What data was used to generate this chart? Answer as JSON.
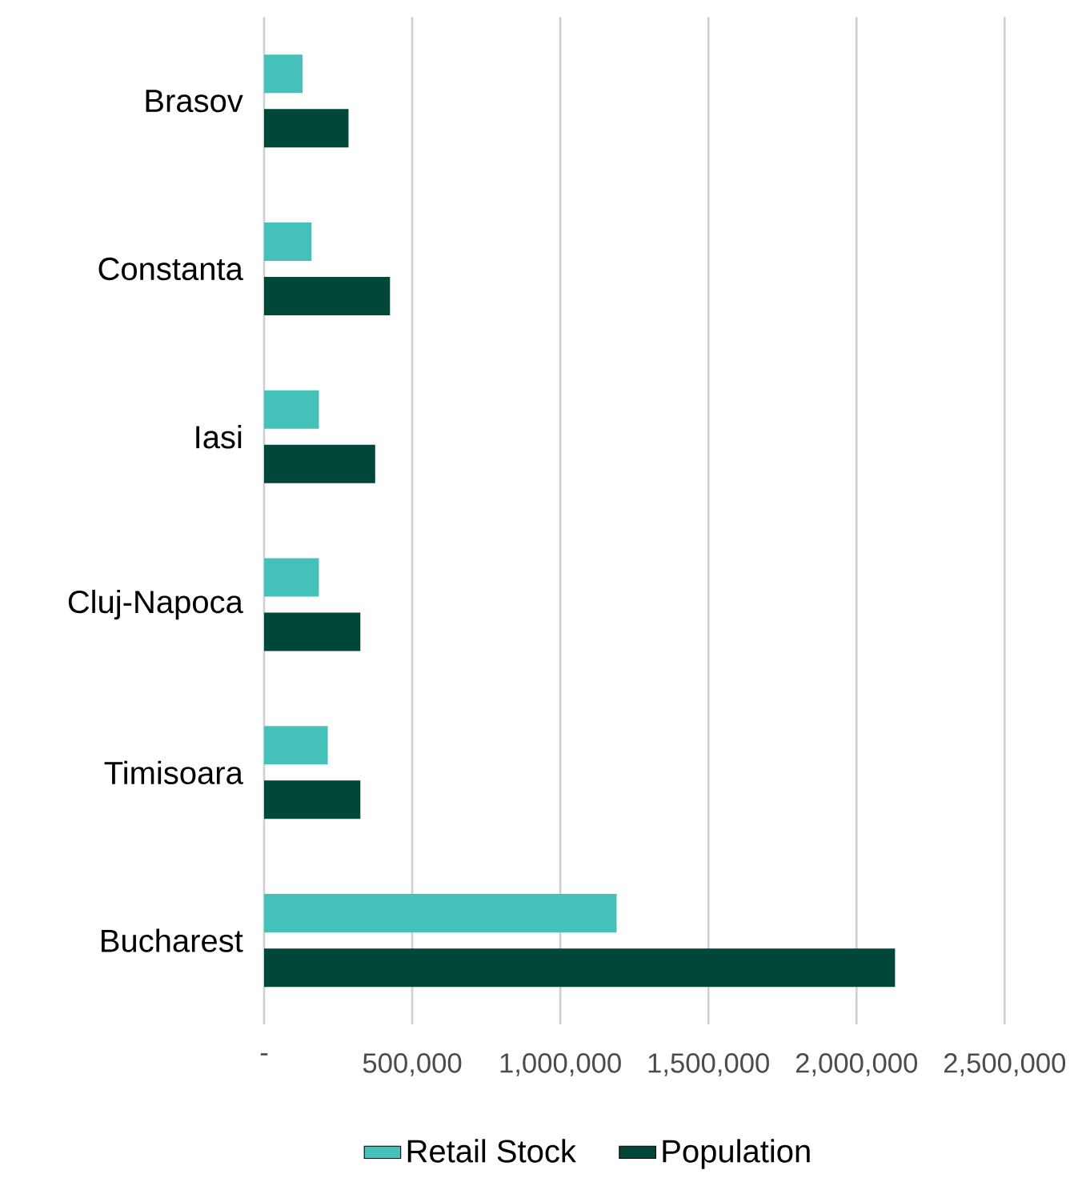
{
  "chart_data": {
    "type": "bar",
    "orientation": "horizontal",
    "categories": [
      "Brasov",
      "Constanta",
      "Iasi",
      "Cluj-Napoca",
      "Timisoara",
      "Bucharest"
    ],
    "series": [
      {
        "name": "Retail Stock",
        "color": "#45c1b9",
        "values": [
          130000,
          160000,
          185000,
          185000,
          215000,
          1190000
        ]
      },
      {
        "name": "Population",
        "color": "#00473a",
        "values": [
          285000,
          425000,
          375000,
          325000,
          325000,
          2130000
        ]
      }
    ],
    "xlim": [
      0,
      2500000
    ],
    "xticks": [
      {
        "value": 0,
        "label": "-"
      },
      {
        "value": 500000,
        "label": "500,000"
      },
      {
        "value": 1000000,
        "label": "1,000,000"
      },
      {
        "value": 1500000,
        "label": "1,500,000"
      },
      {
        "value": 2000000,
        "label": "2,000,000"
      },
      {
        "value": 2500000,
        "label": "2,500,000"
      }
    ],
    "grid": "x",
    "legend": "bottom"
  }
}
